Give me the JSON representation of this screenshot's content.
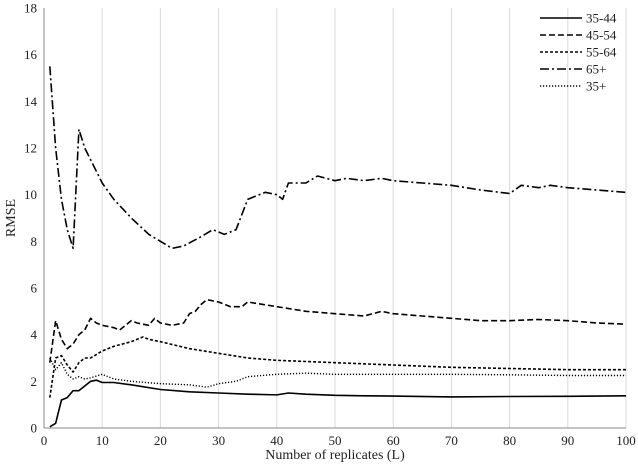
{
  "chart_data": {
    "type": "line",
    "title": "",
    "xlabel": "Number of replicates (L)",
    "ylabel": "RMSE",
    "xlim": [
      0,
      100
    ],
    "ylim": [
      0,
      18
    ],
    "x_ticks": [
      0,
      10,
      20,
      30,
      40,
      50,
      60,
      70,
      80,
      90,
      100
    ],
    "y_ticks": [
      0,
      2,
      4,
      6,
      8,
      10,
      12,
      14,
      16,
      18
    ],
    "grid": "vertical",
    "legend_position": "top-right",
    "series": [
      {
        "name": "35-44",
        "dash": "solid",
        "color": "#000000",
        "points": [
          [
            1,
            0.05
          ],
          [
            2,
            0.2
          ],
          [
            3,
            1.2
          ],
          [
            4,
            1.3
          ],
          [
            5,
            1.6
          ],
          [
            6,
            1.6
          ],
          [
            7,
            1.8
          ],
          [
            8,
            2.0
          ],
          [
            9,
            2.05
          ],
          [
            10,
            1.95
          ],
          [
            12,
            1.95
          ],
          [
            15,
            1.85
          ],
          [
            20,
            1.65
          ],
          [
            25,
            1.55
          ],
          [
            30,
            1.5
          ],
          [
            35,
            1.45
          ],
          [
            40,
            1.42
          ],
          [
            42,
            1.5
          ],
          [
            45,
            1.45
          ],
          [
            50,
            1.4
          ],
          [
            55,
            1.38
          ],
          [
            60,
            1.37
          ],
          [
            70,
            1.33
          ],
          [
            80,
            1.35
          ],
          [
            90,
            1.36
          ],
          [
            100,
            1.38
          ]
        ]
      },
      {
        "name": "45-54",
        "dash": "longdash",
        "color": "#000000",
        "points": [
          [
            1,
            2.8
          ],
          [
            2,
            4.6
          ],
          [
            3,
            3.8
          ],
          [
            4,
            3.4
          ],
          [
            5,
            3.6
          ],
          [
            6,
            4.0
          ],
          [
            7,
            4.2
          ],
          [
            8,
            4.7
          ],
          [
            9,
            4.5
          ],
          [
            10,
            4.4
          ],
          [
            12,
            4.3
          ],
          [
            13,
            4.2
          ],
          [
            15,
            4.6
          ],
          [
            16,
            4.5
          ],
          [
            18,
            4.4
          ],
          [
            19,
            4.7
          ],
          [
            20,
            4.5
          ],
          [
            22,
            4.4
          ],
          [
            24,
            4.5
          ],
          [
            25,
            4.9
          ],
          [
            26,
            5.0
          ],
          [
            27,
            5.3
          ],
          [
            28,
            5.5
          ],
          [
            30,
            5.4
          ],
          [
            32,
            5.2
          ],
          [
            34,
            5.2
          ],
          [
            35,
            5.4
          ],
          [
            40,
            5.2
          ],
          [
            45,
            5.0
          ],
          [
            50,
            4.9
          ],
          [
            55,
            4.8
          ],
          [
            58,
            5.0
          ],
          [
            60,
            4.9
          ],
          [
            65,
            4.8
          ],
          [
            70,
            4.7
          ],
          [
            75,
            4.6
          ],
          [
            80,
            4.6
          ],
          [
            85,
            4.65
          ],
          [
            90,
            4.6
          ],
          [
            95,
            4.5
          ],
          [
            100,
            4.45
          ]
        ]
      },
      {
        "name": "55-64",
        "dash": "shortdash",
        "color": "#000000",
        "points": [
          [
            1,
            1.3
          ],
          [
            2,
            3.0
          ],
          [
            3,
            3.1
          ],
          [
            4,
            2.7
          ],
          [
            5,
            2.4
          ],
          [
            6,
            2.8
          ],
          [
            7,
            3.0
          ],
          [
            8,
            3.0
          ],
          [
            10,
            3.3
          ],
          [
            12,
            3.5
          ],
          [
            15,
            3.7
          ],
          [
            17,
            3.9
          ],
          [
            18,
            3.8
          ],
          [
            20,
            3.7
          ],
          [
            25,
            3.4
          ],
          [
            30,
            3.2
          ],
          [
            35,
            3.0
          ],
          [
            40,
            2.9
          ],
          [
            45,
            2.85
          ],
          [
            50,
            2.8
          ],
          [
            60,
            2.7
          ],
          [
            70,
            2.6
          ],
          [
            80,
            2.55
          ],
          [
            90,
            2.5
          ],
          [
            100,
            2.5
          ]
        ]
      },
      {
        "name": "65+",
        "dash": "dashdot",
        "color": "#000000",
        "points": [
          [
            1,
            15.5
          ],
          [
            2,
            12.0
          ],
          [
            3,
            9.8
          ],
          [
            4,
            8.5
          ],
          [
            5,
            7.7
          ],
          [
            6,
            12.8
          ],
          [
            7,
            12.0
          ],
          [
            8,
            11.5
          ],
          [
            10,
            10.5
          ],
          [
            12,
            9.8
          ],
          [
            15,
            9.0
          ],
          [
            18,
            8.3
          ],
          [
            20,
            8.0
          ],
          [
            22,
            7.7
          ],
          [
            24,
            7.8
          ],
          [
            27,
            8.2
          ],
          [
            29,
            8.5
          ],
          [
            31,
            8.3
          ],
          [
            33,
            8.5
          ],
          [
            35,
            9.8
          ],
          [
            38,
            10.1
          ],
          [
            40,
            10.0
          ],
          [
            41,
            9.8
          ],
          [
            42,
            10.5
          ],
          [
            45,
            10.5
          ],
          [
            47,
            10.8
          ],
          [
            50,
            10.6
          ],
          [
            52,
            10.7
          ],
          [
            55,
            10.6
          ],
          [
            58,
            10.7
          ],
          [
            60,
            10.6
          ],
          [
            65,
            10.5
          ],
          [
            70,
            10.4
          ],
          [
            75,
            10.2
          ],
          [
            80,
            10.05
          ],
          [
            82,
            10.4
          ],
          [
            85,
            10.3
          ],
          [
            87,
            10.4
          ],
          [
            90,
            10.3
          ],
          [
            95,
            10.2
          ],
          [
            100,
            10.1
          ]
        ]
      },
      {
        "name": "35+",
        "dash": "dotted",
        "color": "#000000",
        "points": [
          [
            1,
            3.0
          ],
          [
            2,
            2.5
          ],
          [
            3,
            2.8
          ],
          [
            4,
            2.3
          ],
          [
            5,
            2.1
          ],
          [
            6,
            2.2
          ],
          [
            7,
            2.1
          ],
          [
            8,
            2.15
          ],
          [
            10,
            2.3
          ],
          [
            12,
            2.1
          ],
          [
            15,
            2.0
          ],
          [
            20,
            1.9
          ],
          [
            25,
            1.85
          ],
          [
            28,
            1.75
          ],
          [
            30,
            1.9
          ],
          [
            33,
            2.0
          ],
          [
            35,
            2.2
          ],
          [
            40,
            2.3
          ],
          [
            45,
            2.35
          ],
          [
            50,
            2.3
          ],
          [
            55,
            2.3
          ],
          [
            60,
            2.3
          ],
          [
            70,
            2.3
          ],
          [
            80,
            2.28
          ],
          [
            90,
            2.25
          ],
          [
            100,
            2.25
          ]
        ]
      }
    ]
  }
}
